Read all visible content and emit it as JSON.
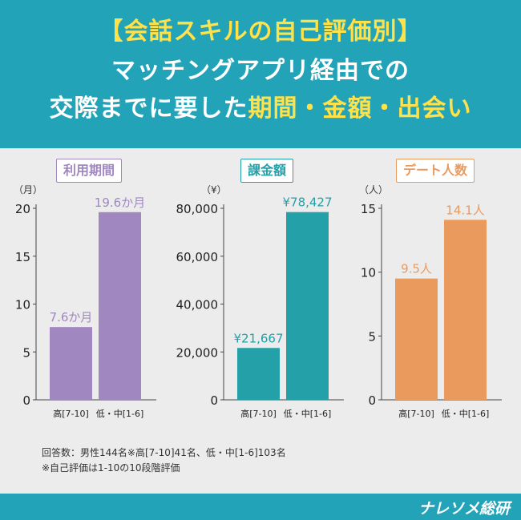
{
  "title": {
    "line1": "【会話スキルの自己評価別】",
    "line2": "マッチングアプリ経由での",
    "line3_prefix": "交際までに要した",
    "line3_accent": "期間・金額・出会い"
  },
  "colors": {
    "header_bg": "#22a3b8",
    "title_accent": "#ffe24a",
    "purple": "#a087c0",
    "teal": "#23a0a8",
    "orange": "#eb9a5e"
  },
  "chart_data": [
    {
      "type": "bar",
      "title": "利用期間",
      "unit_label": "（月）",
      "categories": [
        "高[7-10]",
        "低・中[1-6]"
      ],
      "values": [
        7.6,
        19.6
      ],
      "data_labels": [
        "7.6か月",
        "19.6か月"
      ],
      "ylim": [
        0,
        20
      ],
      "yticks": [
        0,
        5,
        10,
        15,
        20
      ],
      "ytick_labels": [
        "0",
        "5",
        "10",
        "15",
        "20"
      ],
      "color": "#a087c0"
    },
    {
      "type": "bar",
      "title": "課金額",
      "unit_label": "（¥）",
      "categories": [
        "高[7-10]",
        "低・中[1-6]"
      ],
      "values": [
        21667,
        78427
      ],
      "data_labels": [
        "¥21,667",
        "¥78,427"
      ],
      "ylim": [
        0,
        80000
      ],
      "yticks": [
        0,
        20000,
        40000,
        60000,
        80000
      ],
      "ytick_labels": [
        "0",
        "20,000",
        "40,000",
        "60,000",
        "80,000"
      ],
      "color": "#23a0a8"
    },
    {
      "type": "bar",
      "title": "デート人数",
      "unit_label": "（人）",
      "categories": [
        "高[7-10]",
        "低・中[1-6]"
      ],
      "values": [
        9.5,
        14.1
      ],
      "data_labels": [
        "9.5人",
        "14.1人"
      ],
      "ylim": [
        0,
        15
      ],
      "yticks": [
        0,
        5,
        10,
        15
      ],
      "ytick_labels": [
        "0",
        "5",
        "10",
        "15"
      ],
      "color": "#eb9a5e"
    }
  ],
  "footnotes": {
    "line1": "回答数：男性144名※高[7-10]41名、低・中[1-6]103名",
    "line2": "※自己評価は1-10の10段階評価"
  },
  "brand": "ナレソメ総研"
}
